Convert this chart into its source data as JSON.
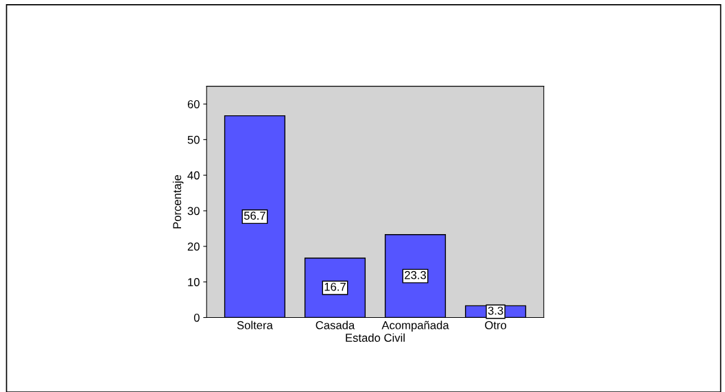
{
  "chart_data": {
    "type": "bar",
    "xlabel": "Estado Civil",
    "ylabel": "Porcentaje",
    "categories": [
      "Soltera",
      "Casada",
      "Acompañada",
      "Otro"
    ],
    "values": [
      56.7,
      16.7,
      23.3,
      3.3
    ],
    "color": "#5555ff",
    "ylim": [
      0,
      65
    ],
    "yticks": [
      0,
      10,
      20,
      30,
      40,
      50,
      60
    ],
    "grid": false,
    "data_labels": true
  }
}
